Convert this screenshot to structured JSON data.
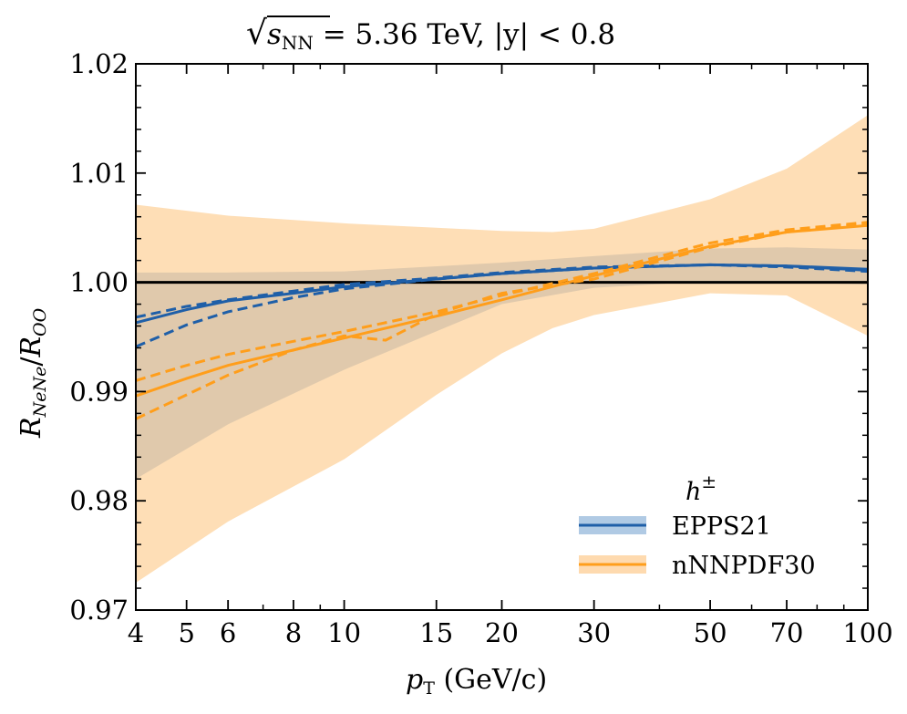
{
  "chart_data": {
    "type": "line",
    "title": "√s_NN = 5.36 TeV, |y| < 0.8",
    "title_parts": {
      "sqrt_symbol": "√",
      "var": "s",
      "sub": "NN",
      "rest": " = 5.36 TeV, |y| < 0.8"
    },
    "xlabel": "p_T (GeV/c)",
    "xlabel_parts": {
      "var": "p",
      "sub": "T",
      "rest": " (GeV/c)"
    },
    "ylabel": "R_NeNe/R_OO",
    "ylabel_parts": {
      "var1": "R",
      "sub1": "NeNe",
      "slash": "/",
      "var2": "R",
      "sub2": "OO"
    },
    "x_scale": "log",
    "xlim": [
      4,
      100
    ],
    "ylim": [
      0.97,
      1.02
    ],
    "xticks": [
      4,
      5,
      6,
      8,
      10,
      15,
      20,
      30,
      50,
      70,
      100
    ],
    "xtick_labels": [
      "4",
      "5",
      "6",
      "8",
      "10",
      "15",
      "20",
      "30",
      "50",
      "70",
      "100"
    ],
    "yticks": [
      0.97,
      0.98,
      0.99,
      1.0,
      1.01,
      1.02
    ],
    "ytick_labels": [
      "0.97",
      "0.98",
      "0.99",
      "1.00",
      "1.01",
      "1.02"
    ],
    "reference_line": 1.0,
    "grid": false,
    "legend": {
      "title": "h±",
      "title_parts": {
        "var": "h",
        "sup": "±"
      },
      "position": "lower-right",
      "entries": [
        "EPPS21",
        "nNNPDF30"
      ]
    },
    "series": [
      {
        "name": "EPPS21",
        "color": "#1f5fa8",
        "band_color": "#8fb3d9",
        "band": {
          "x": [
            4,
            6,
            10,
            20,
            30,
            50,
            70,
            100
          ],
          "upper": [
            1.0009,
            1.0009,
            1.001,
            1.0018,
            1.0024,
            1.0031,
            1.0032,
            1.003
          ],
          "lower": [
            0.982,
            0.987,
            0.992,
            0.998,
            0.9995,
            1.0001,
            1.0,
            0.9998
          ]
        },
        "central": {
          "x": [
            4,
            5,
            6,
            8,
            10,
            15,
            20,
            30,
            50,
            70,
            100
          ],
          "y": [
            0.9963,
            0.9975,
            0.9983,
            0.999,
            0.9996,
            1.0003,
            1.0008,
            1.0013,
            1.0016,
            1.0015,
            1.0012
          ]
        },
        "variants": [
          {
            "x": [
              4,
              5,
              6,
              8,
              10,
              15,
              20,
              30,
              50,
              70,
              100
            ],
            "y": [
              0.9968,
              0.9978,
              0.9984,
              0.9992,
              0.9998,
              1.0004,
              1.0009,
              1.0014,
              1.0016,
              1.0014,
              1.001
            ]
          },
          {
            "x": [
              4,
              5,
              6,
              8,
              10,
              15,
              20,
              30,
              50,
              70,
              100
            ],
            "y": [
              0.9941,
              0.9961,
              0.9973,
              0.9986,
              0.9994,
              1.0003,
              1.0008,
              1.0013,
              1.0016,
              1.0015,
              1.0011
            ]
          }
        ]
      },
      {
        "name": "nNNPDF30",
        "color": "#ff9e1b",
        "band_color": "#fdc27a",
        "band": {
          "x": [
            4,
            6,
            10,
            15,
            20,
            25,
            30,
            50,
            70,
            100
          ],
          "upper": [
            1.0071,
            1.0061,
            1.0054,
            1.005,
            1.0047,
            1.0046,
            1.0049,
            1.0076,
            1.0104,
            1.0153
          ],
          "lower": [
            0.9725,
            0.9781,
            0.9838,
            0.9897,
            0.9935,
            0.9958,
            0.997,
            0.999,
            0.9988,
            0.9951
          ]
        },
        "central": {
          "x": [
            4,
            5,
            6,
            8,
            10,
            15,
            20,
            30,
            50,
            70,
            100
          ],
          "y": [
            0.9896,
            0.9912,
            0.9924,
            0.9938,
            0.9949,
            0.9969,
            0.9984,
            1.0006,
            1.0033,
            1.0046,
            1.0052
          ]
        },
        "variants": [
          {
            "x": [
              4,
              5,
              6,
              8,
              10,
              15,
              20,
              30,
              50,
              70,
              100
            ],
            "y": [
              0.991,
              0.9924,
              0.9934,
              0.9946,
              0.9955,
              0.9973,
              0.9988,
              1.0008,
              1.0036,
              1.0048,
              1.0055
            ]
          },
          {
            "x": [
              4,
              5,
              6,
              8,
              10,
              12,
              15,
              20,
              30,
              50,
              70,
              100
            ],
            "y": [
              0.9875,
              0.9897,
              0.9915,
              0.9938,
              0.9951,
              0.9947,
              0.9971,
              0.999,
              1.0003,
              1.0032,
              1.0046,
              1.0054
            ]
          }
        ]
      }
    ]
  }
}
